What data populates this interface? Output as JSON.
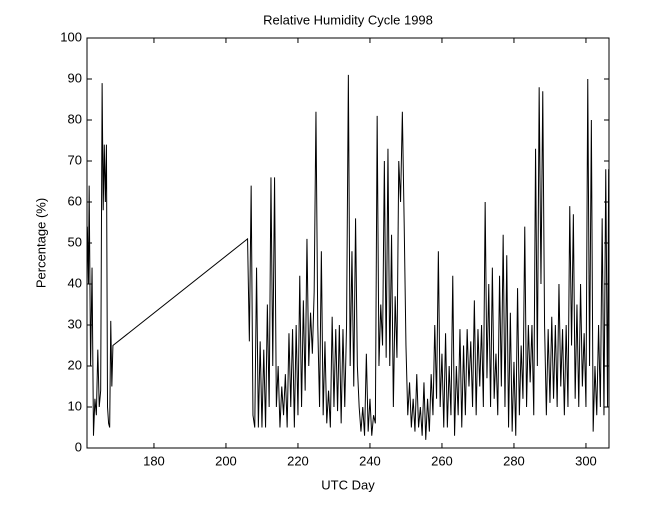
{
  "chart_data": {
    "type": "line",
    "title": "Relative Humidity Cycle 1998",
    "x_label": "UTC Day",
    "y_label": "Percentage (%)",
    "color": "#000000",
    "x": [
      161.5,
      161.8,
      162.0,
      162.4,
      162.8,
      163.2,
      163.6,
      164.0,
      164.4,
      164.8,
      165.2,
      165.6,
      165.9,
      166.2,
      166.5,
      166.8,
      167.1,
      167.4,
      167.7,
      168.0,
      168.3,
      168.6,
      206.0,
      206.5,
      207,
      207.5,
      208,
      208.5,
      209,
      209.5,
      210,
      210.5,
      211,
      211.5,
      212,
      212.5,
      213,
      213.5,
      214,
      214.5,
      215,
      215.5,
      216,
      216.5,
      217,
      217.5,
      218,
      218.5,
      219,
      219.5,
      220,
      220.5,
      221,
      221.5,
      222,
      222.5,
      223,
      223.5,
      224,
      224.5,
      225,
      225.5,
      226,
      226.5,
      227,
      227.5,
      228,
      228.5,
      229,
      229.5,
      230,
      230.5,
      231,
      231.5,
      232,
      232.5,
      233,
      233.5,
      234,
      234.5,
      235,
      235.5,
      236,
      236.5,
      237,
      237.5,
      238,
      238.5,
      239,
      239.5,
      240,
      240.5,
      241,
      241.5,
      242,
      242.5,
      243,
      243.5,
      244,
      244.5,
      245,
      245.5,
      246,
      246.5,
      247,
      247.5,
      248,
      248.5,
      249,
      249.5,
      250,
      250.5,
      251,
      251.5,
      252,
      252.5,
      253,
      253.5,
      254,
      254.5,
      255,
      255.5,
      256,
      256.5,
      257,
      257.5,
      258,
      258.5,
      259,
      259.5,
      260,
      260.5,
      261,
      261.5,
      262,
      262.5,
      263,
      263.5,
      264,
      264.5,
      265,
      265.5,
      266,
      266.5,
      267,
      267.5,
      268,
      268.5,
      269,
      269.5,
      270,
      270.5,
      271,
      271.5,
      272,
      272.5,
      273,
      273.5,
      274,
      274.5,
      275,
      275.5,
      276,
      276.5,
      277,
      277.5,
      278,
      278.5,
      279,
      279.5,
      280,
      280.5,
      281,
      281.5,
      282,
      282.5,
      283,
      283.5,
      284,
      284.5,
      285,
      285.5,
      286,
      286.5,
      287,
      287.5,
      288,
      288.5,
      289,
      289.5,
      290,
      290.5,
      291,
      291.5,
      292,
      292.5,
      293,
      293.5,
      294,
      294.5,
      295,
      295.5,
      296,
      296.5,
      297,
      297.5,
      298,
      298.5,
      299,
      299.5,
      300,
      300.5,
      301,
      301.5,
      302,
      302.5,
      303,
      303.5,
      304,
      304.5,
      305,
      305.5,
      306,
      306.3
    ],
    "values": [
      54,
      40,
      64,
      20,
      44,
      3,
      12,
      8,
      24,
      10,
      14,
      89,
      58,
      74,
      60,
      74,
      10,
      6,
      5,
      31,
      15,
      25,
      51,
      26,
      64,
      8,
      5,
      44,
      5,
      26,
      5,
      24,
      5,
      35,
      10,
      66,
      20,
      66,
      10,
      20,
      5,
      15,
      8,
      18,
      5,
      28,
      10,
      29,
      5,
      30,
      8,
      42,
      10,
      36,
      14,
      51,
      20,
      33,
      23,
      38,
      82,
      30,
      10,
      48,
      8,
      26,
      6,
      14,
      5,
      32,
      10,
      29,
      9,
      30,
      6,
      29,
      10,
      30,
      91,
      20,
      48,
      15,
      56,
      20,
      10,
      4,
      10,
      3,
      23,
      4,
      12,
      3,
      8,
      6,
      81,
      20,
      35,
      25,
      70,
      22,
      73,
      20,
      52,
      10,
      37,
      22,
      70,
      60,
      82,
      55,
      25,
      8,
      16,
      5,
      12,
      4,
      18,
      5,
      10,
      3,
      16,
      2,
      12,
      4,
      18,
      8,
      30,
      12,
      48,
      10,
      23,
      5,
      28,
      5,
      20,
      8,
      42,
      3,
      20,
      8,
      29,
      5,
      25,
      8,
      29,
      15,
      26,
      10,
      36,
      8,
      29,
      15,
      30,
      10,
      60,
      17,
      40,
      10,
      44,
      12,
      23,
      8,
      42,
      15,
      52,
      10,
      47,
      5,
      33,
      4,
      21,
      3,
      39,
      8,
      25,
      12,
      54,
      10,
      30,
      16,
      30,
      8,
      73,
      20,
      88,
      40,
      87,
      30,
      8,
      29,
      11,
      32,
      12,
      30,
      10,
      40,
      15,
      29,
      8,
      30,
      10,
      59,
      25,
      57,
      12,
      35,
      10,
      40,
      15,
      28,
      10,
      90,
      20,
      80,
      4,
      20,
      8,
      30,
      10,
      56,
      8,
      68,
      10,
      68
    ],
    "xlim": [
      161.4,
      306.4
    ],
    "xticks": [
      180,
      200,
      220,
      240,
      260,
      280,
      300
    ],
    "ylim": [
      0,
      100
    ],
    "yticks": [
      0,
      10,
      20,
      30,
      40,
      50,
      60,
      70,
      80,
      90,
      100
    ]
  }
}
